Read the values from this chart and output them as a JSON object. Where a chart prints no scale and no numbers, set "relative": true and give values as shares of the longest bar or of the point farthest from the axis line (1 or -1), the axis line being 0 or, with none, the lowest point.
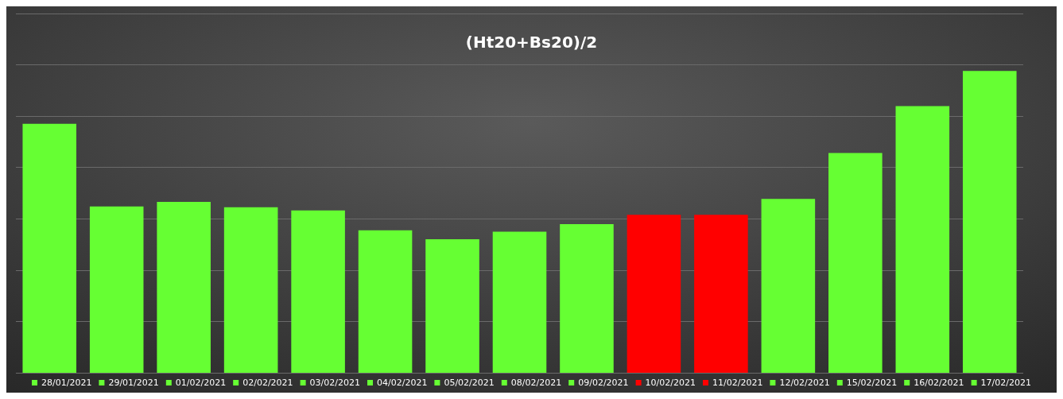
{
  "chart_data": {
    "type": "bar",
    "title": "(Ht20+Bs20)/2",
    "relative": true,
    "grid": "y",
    "legend": "bottom",
    "stacked": true,
    "categories": [
      null,
      null,
      null,
      null,
      null,
      null,
      null,
      null,
      null,
      null,
      null,
      null,
      null,
      null,
      null
    ],
    "series": [
      {
        "name": "28/01/2021",
        "color": "#66ff33",
        "values": [
          0.825,
          null,
          null,
          null,
          null,
          null,
          null,
          null,
          null,
          null,
          null,
          null,
          null,
          null,
          null
        ]
      },
      {
        "name": "29/01/2021",
        "color": "#66ff33",
        "values": [
          null,
          0.551,
          null,
          null,
          null,
          null,
          null,
          null,
          null,
          null,
          null,
          null,
          null,
          null,
          null
        ]
      },
      {
        "name": "01/02/2021",
        "color": "#66ff33",
        "values": [
          null,
          null,
          0.566,
          null,
          null,
          null,
          null,
          null,
          null,
          null,
          null,
          null,
          null,
          null,
          null
        ]
      },
      {
        "name": "02/02/2021",
        "color": "#66ff33",
        "values": [
          null,
          null,
          null,
          0.548,
          null,
          null,
          null,
          null,
          null,
          null,
          null,
          null,
          null,
          null,
          null
        ]
      },
      {
        "name": "03/02/2021",
        "color": "#66ff33",
        "values": [
          null,
          null,
          null,
          null,
          0.538,
          null,
          null,
          null,
          null,
          null,
          null,
          null,
          null,
          null,
          null
        ]
      },
      {
        "name": "04/02/2021",
        "color": "#66ff33",
        "values": [
          null,
          null,
          null,
          null,
          null,
          0.472,
          null,
          null,
          null,
          null,
          null,
          null,
          null,
          null,
          null
        ]
      },
      {
        "name": "05/02/2021",
        "color": "#66ff33",
        "values": [
          null,
          null,
          null,
          null,
          null,
          null,
          0.442,
          null,
          null,
          null,
          null,
          null,
          null,
          null,
          null
        ]
      },
      {
        "name": "08/02/2021",
        "color": "#66ff33",
        "values": [
          null,
          null,
          null,
          null,
          null,
          null,
          null,
          0.467,
          null,
          null,
          null,
          null,
          null,
          null,
          null
        ]
      },
      {
        "name": "09/02/2021",
        "color": "#66ff33",
        "values": [
          null,
          null,
          null,
          null,
          null,
          null,
          null,
          null,
          0.492,
          null,
          null,
          null,
          null,
          null,
          null
        ]
      },
      {
        "name": "10/02/2021",
        "color": "#ff0000",
        "values": [
          null,
          null,
          null,
          null,
          null,
          null,
          null,
          null,
          null,
          0.523,
          null,
          null,
          null,
          null,
          null
        ]
      },
      {
        "name": "11/02/2021",
        "color": "#ff0000",
        "values": [
          null,
          null,
          null,
          null,
          null,
          null,
          null,
          null,
          null,
          null,
          0.523,
          null,
          null,
          null,
          null
        ]
      },
      {
        "name": "12/02/2021",
        "color": "#66ff33",
        "values": [
          null,
          null,
          null,
          null,
          null,
          null,
          null,
          null,
          null,
          null,
          null,
          0.576,
          null,
          null,
          null
        ]
      },
      {
        "name": "15/02/2021",
        "color": "#66ff33",
        "values": [
          null,
          null,
          null,
          null,
          null,
          null,
          null,
          null,
          null,
          null,
          null,
          null,
          0.728,
          null,
          null
        ]
      },
      {
        "name": "16/02/2021",
        "color": "#66ff33",
        "values": [
          null,
          null,
          null,
          null,
          null,
          null,
          null,
          null,
          null,
          null,
          null,
          null,
          null,
          0.883,
          null
        ]
      },
      {
        "name": "17/02/2021",
        "color": "#66ff33",
        "values": [
          null,
          null,
          null,
          null,
          null,
          null,
          null,
          null,
          null,
          null,
          null,
          null,
          null,
          null,
          1
        ]
      }
    ]
  }
}
